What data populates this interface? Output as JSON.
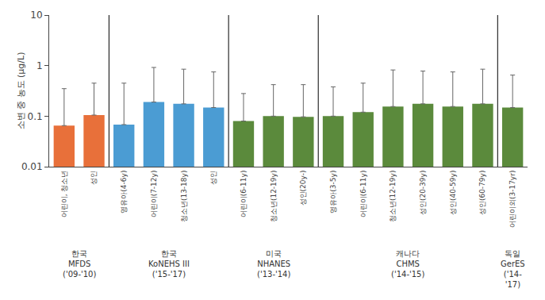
{
  "chart_data": {
    "type": "bar",
    "categories": [
      "어린이, 청소년",
      "성인",
      "영유아(4-6y)",
      "어린이(7-12y)",
      "청소년(13-18y)",
      "성인",
      "어린이(6-11y)",
      "청소년(12-19y)",
      "성인(20y-)",
      "영유아(3-5y)",
      "어린이(6-11y)",
      "청소년(12-19y)",
      "성인(20-39y)",
      "성인(40-59y)",
      "성인(60-79y)",
      "어린이외(3-17yr)"
    ],
    "values": [
      0.065,
      0.105,
      0.068,
      0.19,
      0.175,
      0.148,
      0.08,
      0.1,
      0.097,
      0.1,
      0.12,
      0.155,
      0.175,
      0.155,
      0.175,
      0.148
    ],
    "p95": [
      0.35,
      0.45,
      0.45,
      0.92,
      0.85,
      0.75,
      0.28,
      0.42,
      0.42,
      0.38,
      0.45,
      0.82,
      0.78,
      0.75,
      0.85,
      0.65
    ],
    "colors": [
      "#E8703A",
      "#E8703A",
      "#4B9CD3",
      "#4B9CD3",
      "#4B9CD3",
      "#4B9CD3",
      "#5B8A3C",
      "#5B8A3C",
      "#5B8A3C",
      "#5B8A3C",
      "#5B8A3C",
      "#5B8A3C",
      "#5B8A3C",
      "#5B8A3C",
      "#5B8A3C",
      "#5B8A3C"
    ],
    "groups": [
      {
        "label": [
          "한국",
          "MFDS",
          "('09-'10)"
        ],
        "count": 2
      },
      {
        "label": [
          "한국",
          "KoNEHS III",
          "('15-'17)"
        ],
        "count": 4
      },
      {
        "label": [
          "미국",
          "NHANES",
          "('13-'14)"
        ],
        "count": 3
      },
      {
        "label": [
          "캐나다",
          "CHMS",
          "('14-'15)"
        ],
        "count": 6
      },
      {
        "label": [
          "독일",
          "GerES",
          "('14-",
          "'17)"
        ],
        "count": 1
      }
    ],
    "ylabel": "소변 중 농도 (μg/L)",
    "log": "y",
    "ylim": [
      0.01,
      10
    ],
    "yticks": [
      0.01,
      0.1,
      1,
      10
    ],
    "grid": false
  }
}
